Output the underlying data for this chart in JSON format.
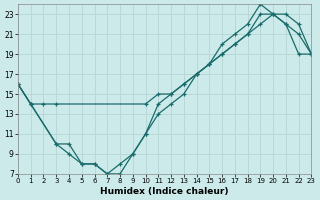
{
  "xlabel": "Humidex (Indice chaleur)",
  "bg_color": "#cdeaea",
  "line_color": "#1a6b6b",
  "grid_color": "#b8d8d8",
  "xmin": 0,
  "xmax": 23,
  "ymin": 7,
  "ymax": 24,
  "yticks": [
    7,
    9,
    11,
    13,
    15,
    17,
    19,
    21,
    23
  ],
  "xticks": [
    0,
    1,
    2,
    3,
    4,
    5,
    6,
    7,
    8,
    9,
    10,
    11,
    12,
    13,
    14,
    15,
    16,
    17,
    18,
    19,
    20,
    21,
    22,
    23
  ],
  "line1_x": [
    0,
    1,
    2,
    3,
    10,
    11,
    12,
    13,
    14,
    15,
    16,
    17,
    18,
    19,
    20,
    21,
    22,
    23
  ],
  "line1_y": [
    16,
    14,
    14,
    14,
    14,
    15,
    15,
    16,
    17,
    18,
    19,
    20,
    21,
    22,
    23,
    23,
    22,
    19
  ],
  "line2_x": [
    0,
    1,
    3,
    4,
    5,
    6,
    7,
    8,
    9,
    10,
    11,
    12,
    13,
    14,
    15,
    16,
    17,
    18,
    19,
    20,
    21,
    22,
    23
  ],
  "line2_y": [
    16,
    14,
    10,
    10,
    8,
    8,
    7,
    7,
    9,
    11,
    13,
    14,
    15,
    17,
    18,
    19,
    20,
    21,
    23,
    23,
    22,
    19,
    19
  ],
  "line3_x": [
    0,
    1,
    3,
    4,
    5,
    6,
    7,
    8,
    9,
    10,
    11,
    12,
    13,
    14,
    15,
    16,
    17,
    18,
    19,
    20,
    21,
    22,
    23
  ],
  "line3_y": [
    16,
    14,
    10,
    9,
    8,
    8,
    7,
    8,
    9,
    11,
    14,
    15,
    16,
    17,
    18,
    20,
    21,
    22,
    24,
    23,
    22,
    21,
    19
  ]
}
